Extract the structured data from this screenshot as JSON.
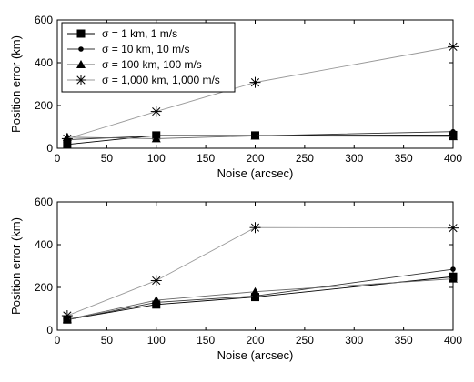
{
  "chart_data": [
    {
      "type": "line",
      "xlabel": "Noise (arcsec)",
      "ylabel": "Position error (km)",
      "xlim": [
        0,
        400
      ],
      "ylim": [
        0,
        600
      ],
      "xticks": [
        0,
        50,
        100,
        150,
        200,
        250,
        300,
        350,
        400
      ],
      "yticks": [
        0,
        200,
        400,
        600
      ],
      "grid": false,
      "legend": "top-left",
      "x": [
        10,
        100,
        200,
        400
      ],
      "series": [
        {
          "name": "σ = 1 km, 1 m/s",
          "marker": "square",
          "values": [
            18,
            60,
            60,
            62
          ]
        },
        {
          "name": "σ = 10 km, 10 m/s",
          "marker": "dot",
          "values": [
            40,
            58,
            58,
            78
          ]
        },
        {
          "name": "σ = 100 km, 100 m/s",
          "marker": "triangle",
          "values": [
            52,
            45,
            58,
            55
          ]
        },
        {
          "name": "σ = 1,000 km, 1,000 m/s",
          "marker": "star",
          "values": [
            45,
            172,
            308,
            475
          ]
        }
      ]
    },
    {
      "type": "line",
      "xlabel": "Noise (arcsec)",
      "ylabel": "Position error (km)",
      "xlim": [
        0,
        400
      ],
      "ylim": [
        0,
        600
      ],
      "xticks": [
        0,
        50,
        100,
        150,
        200,
        250,
        300,
        350,
        400
      ],
      "yticks": [
        0,
        200,
        400,
        600
      ],
      "grid": false,
      "x": [
        10,
        100,
        200,
        400
      ],
      "series": [
        {
          "marker": "square",
          "values": [
            50,
            120,
            155,
            250
          ]
        },
        {
          "marker": "dot",
          "values": [
            48,
            130,
            160,
            285
          ]
        },
        {
          "marker": "triangle",
          "values": [
            50,
            140,
            180,
            240
          ]
        },
        {
          "marker": "star",
          "values": [
            68,
            232,
            480,
            478
          ]
        }
      ]
    }
  ]
}
